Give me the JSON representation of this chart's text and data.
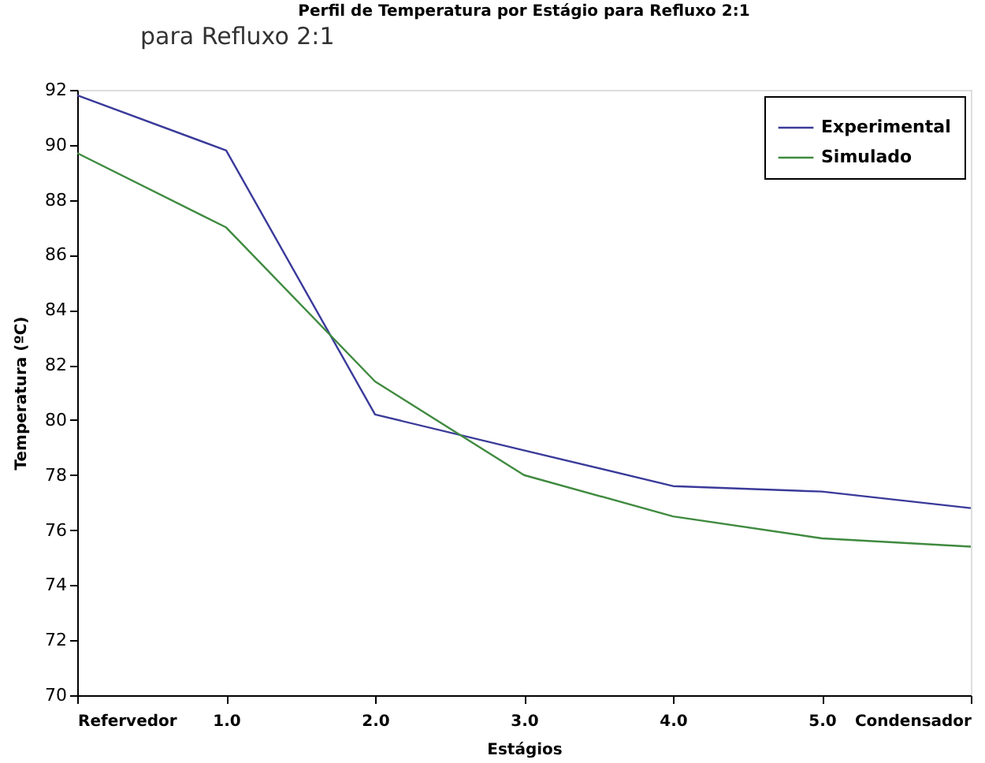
{
  "chart_data": {
    "type": "line",
    "title": "Perfil de Temperatura por Estágio para Refluxo 2:1",
    "xlabel": "Estágios",
    "ylabel": "Temperatura (ºC)",
    "annotations": [
      "para Refluxo 2:1"
    ],
    "x": [
      0,
      1,
      2,
      3,
      4,
      5,
      6
    ],
    "xlim": [
      0,
      6
    ],
    "xticks": [
      {
        "value": 0,
        "label": "Refervedor"
      },
      {
        "value": 1,
        "label": "1.0"
      },
      {
        "value": 2,
        "label": "2.0"
      },
      {
        "value": 3,
        "label": "3.0"
      },
      {
        "value": 4,
        "label": "4.0"
      },
      {
        "value": 5,
        "label": "5.0"
      },
      {
        "value": 6,
        "label": "Condensador"
      }
    ],
    "ylim": [
      70,
      92
    ],
    "yticks": [
      70,
      72,
      74,
      76,
      78,
      80,
      82,
      84,
      86,
      88,
      90,
      92
    ],
    "series": [
      {
        "name": "Experimental",
        "color": "#3a3a9a",
        "values": [
          91.8,
          89.8,
          80.2,
          78.9,
          77.6,
          77.4,
          76.8
        ]
      },
      {
        "name": "Simulado",
        "color": "#3f8a3f",
        "values": [
          89.7,
          87.0,
          81.4,
          78.0,
          76.5,
          75.7,
          75.4
        ]
      }
    ],
    "legend": "top right",
    "grid": false,
    "marker": "none",
    "line_style": "solid"
  }
}
